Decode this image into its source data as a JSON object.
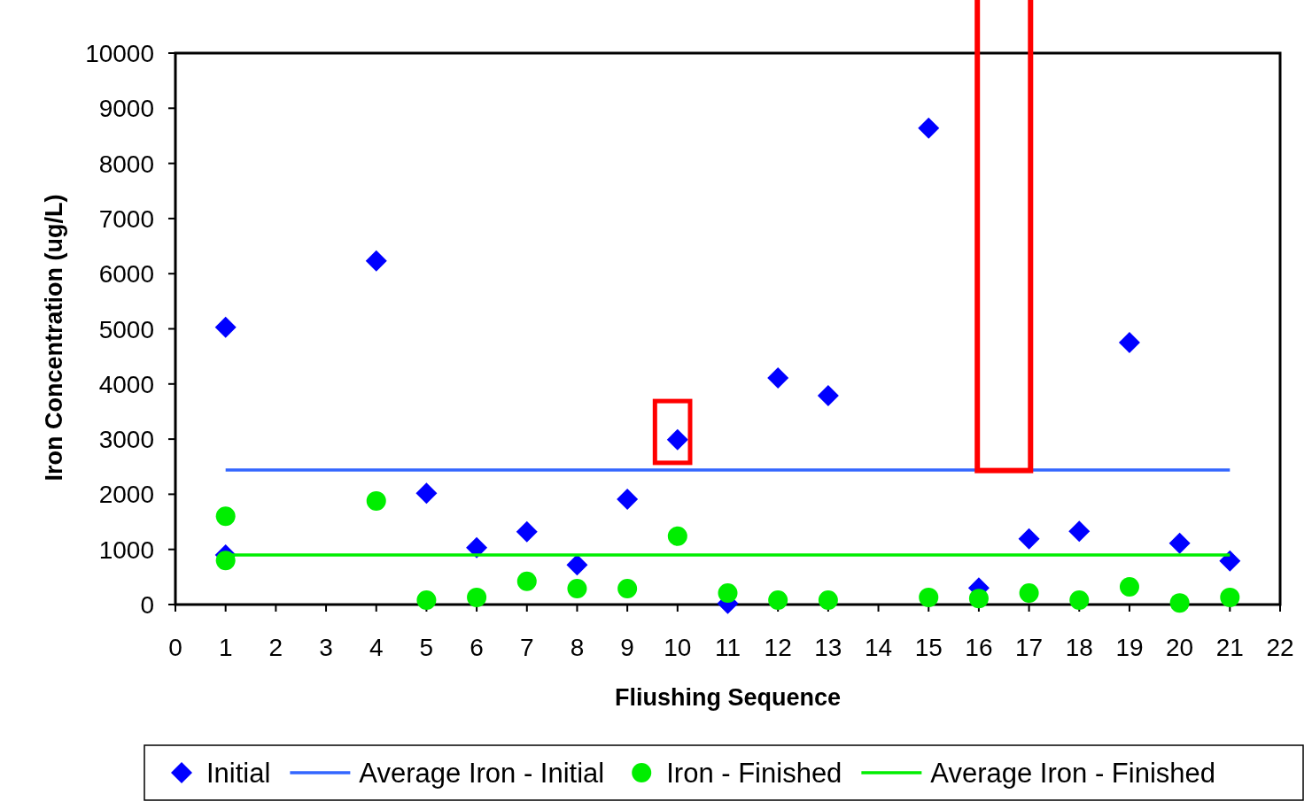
{
  "chart_data": {
    "type": "scatter",
    "xlabel": "Fliushing Sequence",
    "ylabel": "Iron Concentration (ug/L)",
    "xlim": [
      0,
      22
    ],
    "xticks": [
      0,
      1,
      2,
      3,
      4,
      5,
      6,
      7,
      8,
      9,
      10,
      11,
      12,
      13,
      14,
      15,
      16,
      17,
      18,
      19,
      20,
      21,
      22
    ],
    "ylim": [
      0,
      10000
    ],
    "yticks": [
      0,
      1000,
      2000,
      3000,
      4000,
      5000,
      6000,
      7000,
      8000,
      9000,
      10000
    ],
    "grid": false,
    "legend": "bottom",
    "series": [
      {
        "name": "Initial",
        "marker": "diamond",
        "color": "#0000ff",
        "x": [
          1,
          1,
          4,
          5,
          6,
          7,
          8,
          9,
          10,
          11,
          12,
          13,
          15,
          16,
          17,
          18,
          19,
          20,
          21
        ],
        "values": [
          5030,
          900,
          6230,
          2020,
          1030,
          1320,
          720,
          1910,
          2990,
          20,
          4110,
          3790,
          8640,
          300,
          1190,
          1330,
          4750,
          1110,
          790
        ]
      },
      {
        "name": "Average Iron - Initial",
        "type": "line",
        "color": "#3366ff",
        "x": [
          1,
          21
        ],
        "values": [
          2440,
          2440
        ]
      },
      {
        "name": "Iron - Finished",
        "marker": "circle",
        "color": "#00ee00",
        "x": [
          1,
          1,
          4,
          5,
          6,
          7,
          8,
          9,
          10,
          11,
          12,
          13,
          15,
          16,
          17,
          18,
          19,
          20,
          21
        ],
        "values": [
          1600,
          800,
          1880,
          80,
          130,
          420,
          290,
          290,
          1240,
          210,
          80,
          80,
          130,
          110,
          210,
          80,
          320,
          30,
          130
        ]
      },
      {
        "name": "Average Iron - Finished",
        "type": "line",
        "color": "#00ee00",
        "x": [
          1,
          21
        ],
        "values": [
          900,
          900
        ]
      }
    ]
  }
}
